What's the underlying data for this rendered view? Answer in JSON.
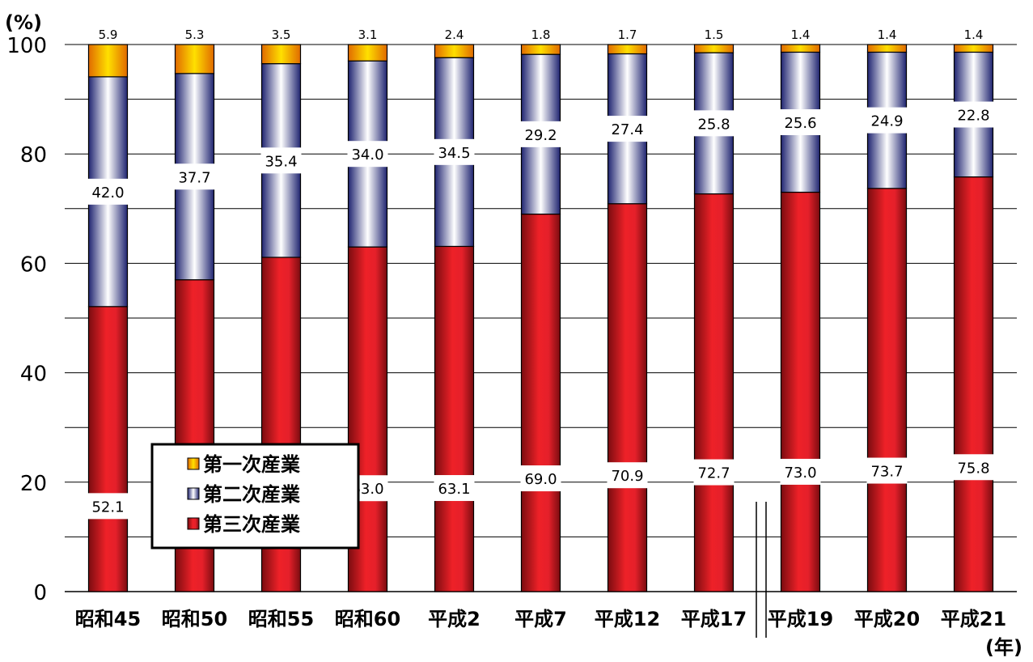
{
  "chart_data": {
    "type": "bar",
    "stacked": true,
    "y_unit_label": "(%)",
    "x_unit_label": "(年)",
    "ylim": [
      0,
      100
    ],
    "y_ticks": [
      0,
      20,
      40,
      60,
      80,
      100
    ],
    "grid": true,
    "legend_position": "bottom-left inside plot",
    "axis_break_after": "平成17",
    "categories": [
      "昭和45",
      "昭和50",
      "昭和55",
      "昭和60",
      "平成2",
      "平成7",
      "平成12",
      "平成17",
      "平成19",
      "平成20",
      "平成21"
    ],
    "series": [
      {
        "name": "第三次産業",
        "color": "#e8232a",
        "values": [
          52.1,
          57.0,
          61.1,
          63.0,
          63.1,
          69.0,
          70.9,
          72.7,
          73.0,
          73.7,
          75.8
        ]
      },
      {
        "name": "第二次産業",
        "color": "#d9dbe8",
        "values": [
          42.0,
          37.7,
          35.4,
          34.0,
          34.5,
          29.2,
          27.4,
          25.8,
          25.6,
          24.9,
          22.8
        ]
      },
      {
        "name": "第一次産業",
        "color": "#f5b800",
        "values": [
          5.9,
          5.3,
          3.5,
          3.1,
          2.4,
          1.8,
          1.7,
          1.5,
          1.4,
          1.4,
          1.4
        ]
      }
    ],
    "legend": [
      "第一次産業",
      "第二次産業",
      "第三次産業"
    ]
  }
}
